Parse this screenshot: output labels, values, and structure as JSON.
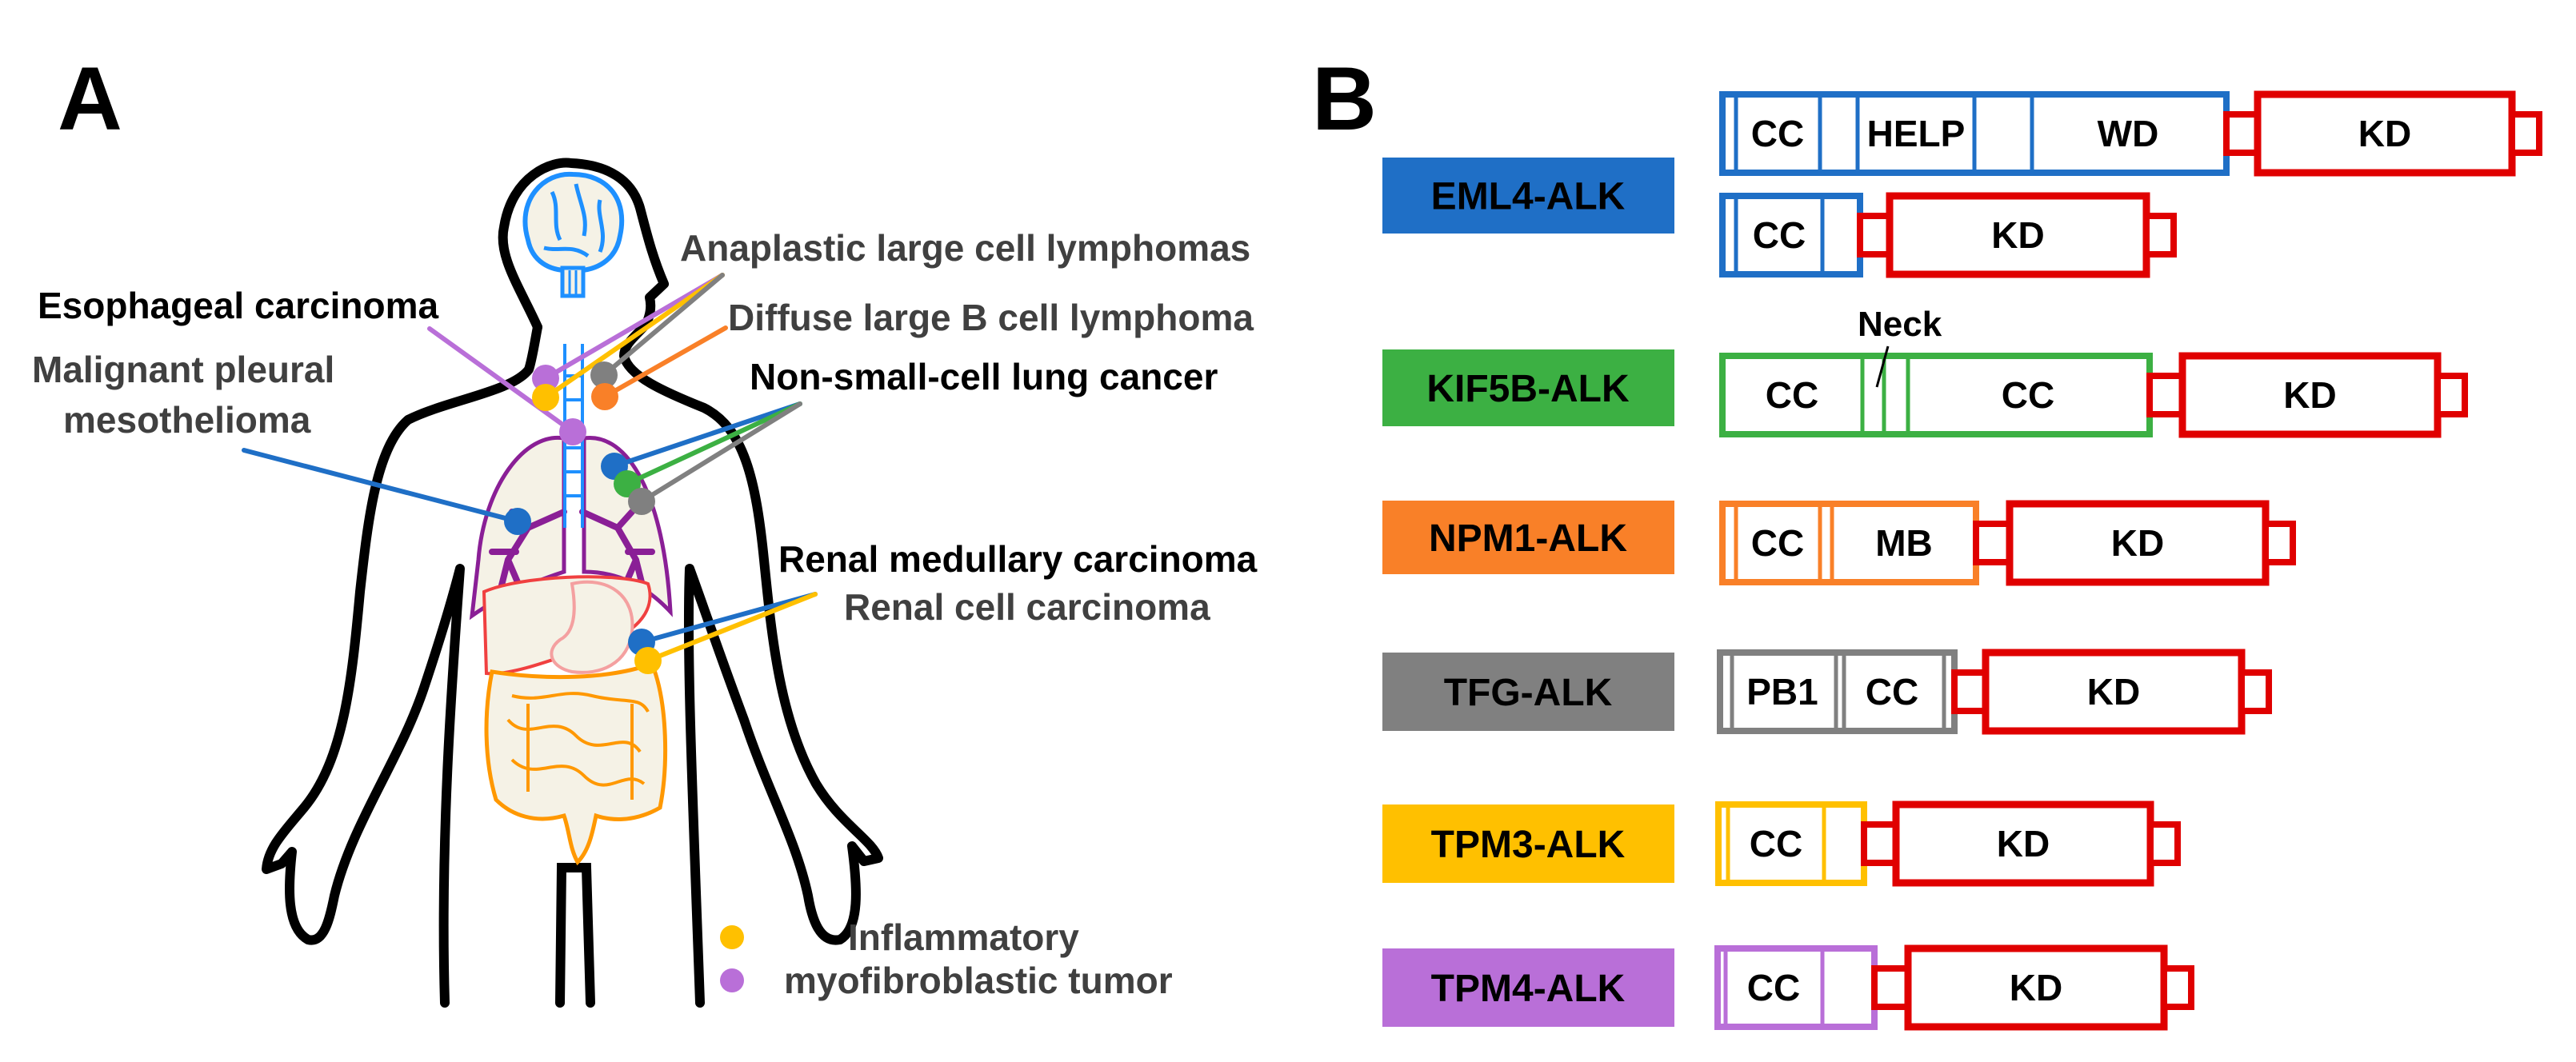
{
  "panel_labels": {
    "a": "A",
    "b": "B"
  },
  "colors": {
    "blue": "#1f6fc6",
    "green": "#3cb043",
    "orange": "#f98028",
    "gray": "#808080",
    "yellow": "#ffc000",
    "purple": "#b96fd8",
    "alk_red": "#e00000",
    "body_outline": "#000000",
    "label_gray": "#404040"
  },
  "panel_a": {
    "sites": {
      "alcl": "Anaplastic large cell lymphomas",
      "esophageal": "Esophageal carcinoma",
      "dlbcl": "Diffuse large B cell lymphoma",
      "mpm_line1": "Malignant pleural",
      "mpm_line2": "mesothelioma",
      "nsclc": "Non-small-cell lung cancer",
      "renal_medullary": "Renal medullary carcinoma",
      "renal_cell": "Renal cell carcinoma"
    },
    "legend": {
      "line1": "Inflammatory",
      "line2": "myofibroblastic tumor"
    }
  },
  "panel_b": {
    "neck_label": "Neck",
    "fusions": [
      {
        "name": "EML4-ALK",
        "color": "#1f6fc6",
        "variants": [
          {
            "partner_domains": [
              "CC",
              "HELP",
              "WD"
            ],
            "alk_domain": "KD"
          },
          {
            "partner_domains": [
              "CC"
            ],
            "alk_domain": "KD"
          }
        ]
      },
      {
        "name": "KIF5B-ALK",
        "color": "#3cb043",
        "variants": [
          {
            "partner_domains": [
              "CC",
              "CC"
            ],
            "alk_domain": "KD"
          }
        ]
      },
      {
        "name": "NPM1-ALK",
        "color": "#f98028",
        "variants": [
          {
            "partner_domains": [
              "CC",
              "MB"
            ],
            "alk_domain": "KD"
          }
        ]
      },
      {
        "name": "TFG-ALK",
        "color": "#808080",
        "variants": [
          {
            "partner_domains": [
              "PB1",
              "CC"
            ],
            "alk_domain": "KD"
          }
        ]
      },
      {
        "name": "TPM3-ALK",
        "color": "#ffc000",
        "variants": [
          {
            "partner_domains": [
              "CC"
            ],
            "alk_domain": "KD"
          }
        ]
      },
      {
        "name": "TPM4-ALK",
        "color": "#b96fd8",
        "variants": [
          {
            "partner_domains": [
              "CC"
            ],
            "alk_domain": "KD"
          }
        ]
      }
    ]
  }
}
